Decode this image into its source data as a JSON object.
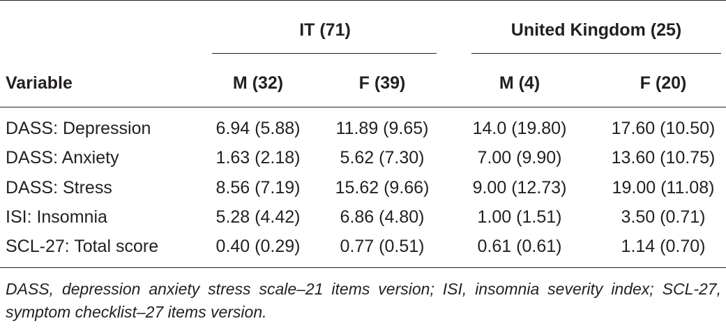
{
  "table": {
    "group_headers": [
      "IT (71)",
      "United Kingdom (25)"
    ],
    "column_headers": [
      "Variable",
      "M (32)",
      "F (39)",
      "M (4)",
      "F (20)"
    ],
    "rows": [
      [
        "DASS: Depression",
        "6.94 (5.88)",
        "11.89 (9.65)",
        "14.0 (19.80)",
        "17.60 (10.50)"
      ],
      [
        "DASS: Anxiety",
        "1.63 (2.18)",
        "5.62 (7.30)",
        "7.00 (9.90)",
        "13.60 (10.75)"
      ],
      [
        "DASS: Stress",
        "8.56 (7.19)",
        "15.62 (9.66)",
        "9.00 (12.73)",
        "19.00 (11.08)"
      ],
      [
        "ISI: Insomnia",
        "5.28 (4.42)",
        "6.86 (4.80)",
        "1.00 (1.51)",
        "3.50 (0.71)"
      ],
      [
        "SCL-27: Total score",
        "0.40 (0.29)",
        "0.77 (0.51)",
        "0.61 (0.61)",
        "1.14 (0.70)"
      ]
    ],
    "footnote": "DASS, depression anxiety stress scale–21 items version; ISI, insomnia severity index; SCL-27, symptom checklist–27 items version."
  }
}
